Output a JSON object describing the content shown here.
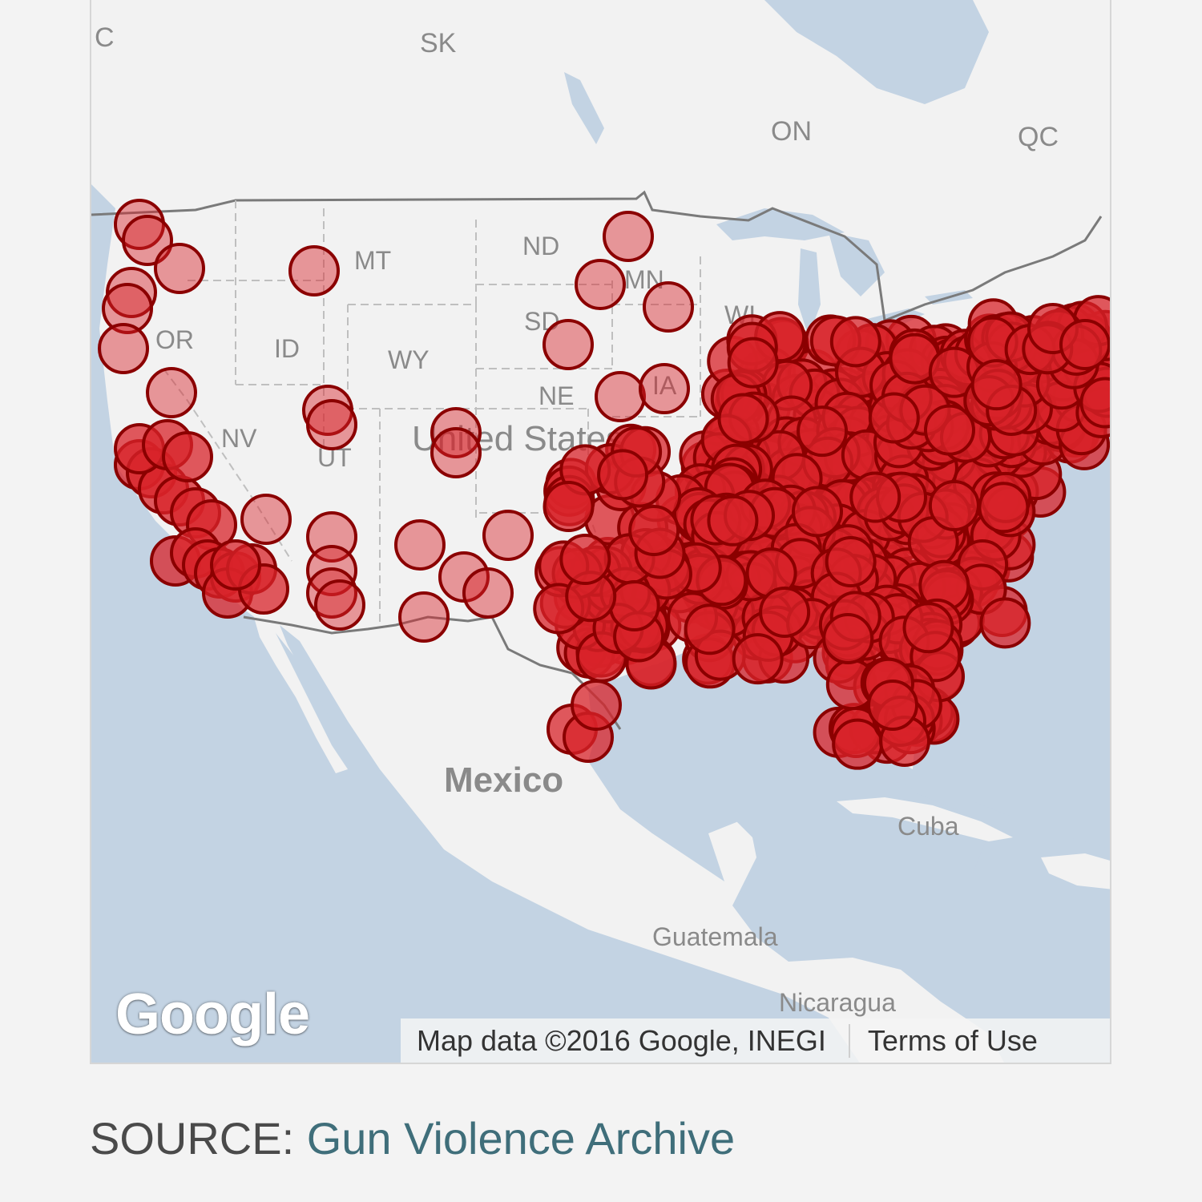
{
  "map": {
    "state_labels": [
      {
        "text": "SK"
      },
      {
        "text": "ON"
      },
      {
        "text": "QC"
      },
      {
        "text": "MT"
      },
      {
        "text": "ND"
      },
      {
        "text": "MN"
      },
      {
        "text": "SD"
      },
      {
        "text": "OR"
      },
      {
        "text": "ID"
      },
      {
        "text": "WY"
      },
      {
        "text": "NE"
      },
      {
        "text": "IA"
      },
      {
        "text": "NV"
      },
      {
        "text": "UT"
      },
      {
        "text": "WI"
      },
      {
        "text": "C"
      }
    ],
    "country_labels": {
      "us": "United States",
      "mexico": "Mexico",
      "cuba": "Cuba",
      "guatemala": "Guatemala",
      "nicaragua": "Nicaragua"
    },
    "logo": "Google",
    "attribution": "Map data ©2016 Google, INEGI",
    "terms": "Terms of Use",
    "marker_color": "#d8232a",
    "marker_stroke": "#8b0000"
  },
  "source": {
    "label": "SOURCE:",
    "link_text": "Gun Violence Archive"
  }
}
